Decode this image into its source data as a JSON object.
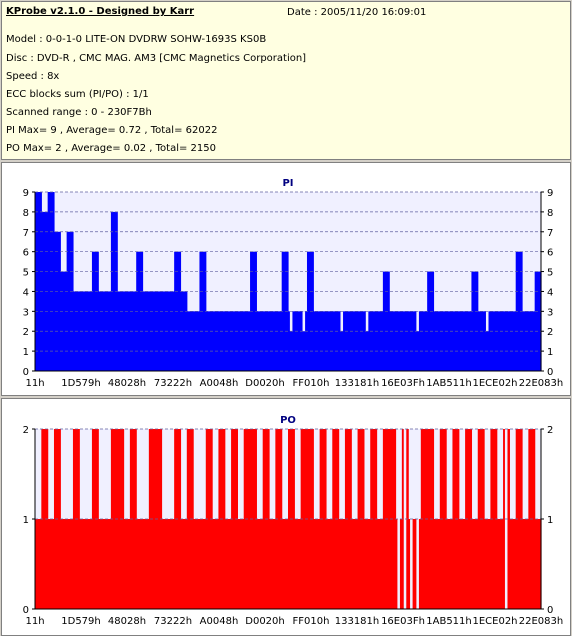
{
  "header": {
    "title": "KProbe v2.1.0 - Designed by Karr",
    "date": "Date : 2005/11/20 16:09:01",
    "lines": [
      "Model : 0-0-1-0 LITE-ON DVDRW SOHW-1693S KS0B",
      "Disc : DVD-R , CMC MAG. AM3 [CMC Magnetics Corporation]",
      "Speed : 8x",
      "ECC blocks sum (PI/PO) : 1/1",
      "Scanned range : 0 - 230F7Bh",
      "PI Max= 9 , Average= 0.72 , Total= 62022",
      "PO Max= 2 , Average= 0.02 , Total= 2150"
    ]
  },
  "chart_data": [
    {
      "type": "bar",
      "title": "PI",
      "ylim": [
        0,
        9
      ],
      "yticks": [
        "0",
        "1",
        "2",
        "3",
        "4",
        "5",
        "6",
        "7",
        "8",
        "9"
      ],
      "xticks": [
        "11h",
        "1D579h",
        "48028h",
        "73222h",
        "A0048h",
        "D0020h",
        "FF010h",
        "133181h",
        "16E03Fh",
        "1AB511h",
        "1ECE02h",
        "22E083h"
      ],
      "color": "#0000ff",
      "grid": true,
      "series": [
        {
          "profile": [
            5,
            5,
            5,
            5,
            5,
            4,
            4,
            4,
            4,
            4,
            4,
            4,
            4,
            4,
            4,
            4,
            4,
            4,
            4,
            4,
            4,
            4,
            4,
            4,
            3,
            3,
            3,
            3,
            3,
            3,
            3,
            3,
            3,
            3,
            3,
            3,
            3,
            3,
            3,
            3,
            3,
            3,
            3,
            3,
            3,
            3,
            3,
            3,
            3,
            3,
            3,
            3,
            3,
            3,
            3,
            3,
            3,
            3,
            3,
            3,
            3,
            3,
            3,
            3,
            3,
            3,
            3,
            3,
            3,
            3,
            3,
            3,
            3,
            3,
            3,
            3,
            3,
            3,
            3,
            3
          ],
          "peaks": [
            [
              0,
              9
            ],
            [
              1,
              8
            ],
            [
              2,
              9
            ],
            [
              3,
              7
            ],
            [
              5,
              7
            ],
            [
              9,
              6
            ],
            [
              12,
              8
            ],
            [
              16,
              6
            ],
            [
              22,
              6
            ],
            [
              26,
              6
            ],
            [
              34,
              6
            ],
            [
              39,
              6
            ],
            [
              43,
              6
            ],
            [
              55,
              5
            ],
            [
              62,
              5
            ],
            [
              69,
              5
            ],
            [
              76,
              6
            ],
            [
              79,
              5
            ]
          ],
          "dips": [
            [
              40,
              2
            ],
            [
              42,
              2
            ],
            [
              48,
              2
            ],
            [
              52,
              2
            ],
            [
              60,
              2
            ],
            [
              71,
              2
            ]
          ]
        }
      ]
    },
    {
      "type": "bar",
      "title": "PO",
      "ylim": [
        0,
        2
      ],
      "yticks": [
        "0",
        "1",
        "2"
      ],
      "xticks": [
        "11h",
        "1D579h",
        "48028h",
        "73222h",
        "A0048h",
        "D0020h",
        "FF010h",
        "133181h",
        "16E03Fh",
        "1AB511h",
        "1ECE02h",
        "22E083h"
      ],
      "color": "#ff0000",
      "grid": true,
      "series": [
        {
          "profile": [
            1,
            1,
            1,
            1,
            1,
            1,
            1,
            1,
            1,
            1,
            1,
            1,
            1,
            1,
            1,
            1,
            1,
            1,
            1,
            1,
            1,
            1,
            1,
            1,
            1,
            1,
            1,
            1,
            1,
            1,
            1,
            1,
            1,
            1,
            1,
            1,
            1,
            1,
            1,
            1,
            1,
            1,
            1,
            1,
            1,
            1,
            1,
            1,
            1,
            1,
            1,
            1,
            1,
            1,
            1,
            1,
            1,
            1,
            1,
            1,
            1,
            1,
            1,
            1,
            1,
            1,
            1,
            1,
            1,
            1,
            1,
            1,
            1,
            1,
            1,
            1,
            1,
            1,
            1,
            1
          ],
          "peaks": [
            [
              1,
              2
            ],
            [
              3,
              2
            ],
            [
              6,
              2
            ],
            [
              9,
              2
            ],
            [
              12,
              2
            ],
            [
              13,
              2
            ],
            [
              15,
              2
            ],
            [
              18,
              2
            ],
            [
              19,
              2
            ],
            [
              22,
              2
            ],
            [
              24,
              2
            ],
            [
              27,
              2
            ],
            [
              29,
              2
            ],
            [
              31,
              2
            ],
            [
              33,
              2
            ],
            [
              34,
              2
            ],
            [
              36,
              2
            ],
            [
              38,
              2
            ],
            [
              40,
              2
            ],
            [
              42,
              2
            ],
            [
              43,
              2
            ],
            [
              45,
              2
            ],
            [
              47,
              2
            ],
            [
              49,
              2
            ],
            [
              51,
              2
            ],
            [
              53,
              2
            ],
            [
              55,
              2
            ],
            [
              56,
              2
            ],
            [
              58,
              2
            ],
            [
              61,
              2
            ],
            [
              62,
              2
            ],
            [
              64,
              2
            ],
            [
              66,
              2
            ],
            [
              68,
              2
            ],
            [
              70,
              2
            ],
            [
              72,
              2
            ],
            [
              74,
              2
            ],
            [
              76,
              2
            ],
            [
              78,
              2
            ]
          ],
          "dips": [
            [
              57,
              0
            ],
            [
              58,
              0
            ],
            [
              59,
              0
            ],
            [
              60,
              0
            ],
            [
              74,
              0
            ]
          ]
        }
      ]
    }
  ]
}
